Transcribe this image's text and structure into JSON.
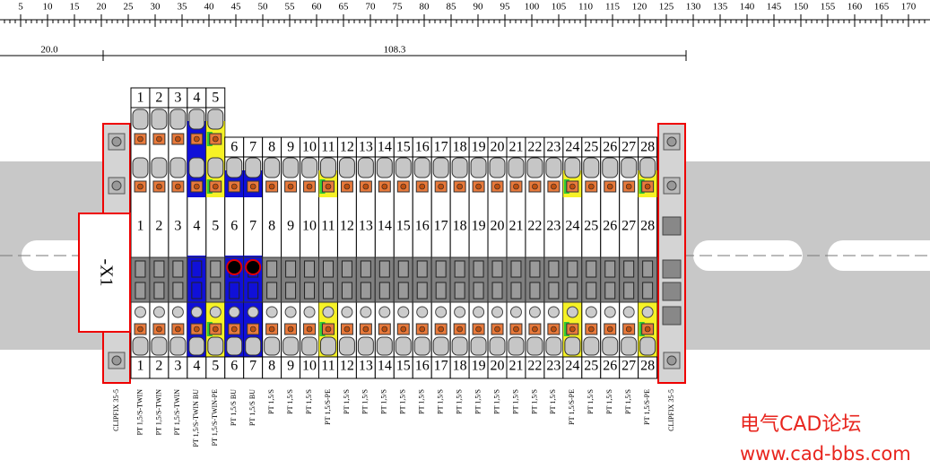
{
  "ruler": {
    "labels": [
      5,
      10,
      15,
      20,
      25,
      30,
      35,
      40,
      45,
      50,
      55,
      60,
      65,
      70,
      75,
      80,
      85,
      90,
      95,
      100,
      105,
      110,
      115,
      120,
      125,
      130,
      135,
      140,
      145,
      150,
      155,
      160,
      165,
      170
    ]
  },
  "dimensions": [
    {
      "label": "20.0"
    },
    {
      "label": "108.3"
    }
  ],
  "strip": {
    "name": "-X1",
    "left_clamp": "CLIPFIX 35-5",
    "right_clamp": "CLIPFIX 35-5"
  },
  "terminals": [
    {
      "number": 1,
      "type": "PT 1,5/S-TWIN"
    },
    {
      "number": 2,
      "type": "PT 1,5/S-TWIN"
    },
    {
      "number": 3,
      "type": "PT 1,5/S-TWIN"
    },
    {
      "number": 4,
      "type": "PT 1,5/S-TWIN BU"
    },
    {
      "number": 5,
      "type": "PT 1,5/S-TWIN-PE"
    },
    {
      "number": 6,
      "type": "PT 1,5/S BU"
    },
    {
      "number": 7,
      "type": "PT 1,5/S BU"
    },
    {
      "number": 8,
      "type": "PT 1,5/S"
    },
    {
      "number": 9,
      "type": "PT 1,5/S"
    },
    {
      "number": 10,
      "type": "PT 1,5/S"
    },
    {
      "number": 11,
      "type": "PT 1,5/S-PE"
    },
    {
      "number": 12,
      "type": "PT 1,5/S"
    },
    {
      "number": 13,
      "type": "PT 1,5/S"
    },
    {
      "number": 14,
      "type": "PT 1,5/S"
    },
    {
      "number": 15,
      "type": "PT 1,5/S"
    },
    {
      "number": 16,
      "type": "PT 1,5/S"
    },
    {
      "number": 17,
      "type": "PT 1,5/S"
    },
    {
      "number": 18,
      "type": "PT 1,5/S"
    },
    {
      "number": 19,
      "type": "PT 1,5/S"
    },
    {
      "number": 20,
      "type": "PT 1,5/S"
    },
    {
      "number": 21,
      "type": "PT 1,5/S"
    },
    {
      "number": 22,
      "type": "PT 1,5/S"
    },
    {
      "number": 23,
      "type": "PT 1,5/S"
    },
    {
      "number": 24,
      "type": "PT 1,5/S-PE"
    },
    {
      "number": 25,
      "type": "PT 1,5/S"
    },
    {
      "number": 26,
      "type": "PT 1,5/S"
    },
    {
      "number": 27,
      "type": "PT 1,5/S"
    },
    {
      "number": 28,
      "type": "PT 1,5/S-PE"
    }
  ],
  "watermark": {
    "title": "电气CAD论坛",
    "url": "www.cad-bbs.com"
  }
}
